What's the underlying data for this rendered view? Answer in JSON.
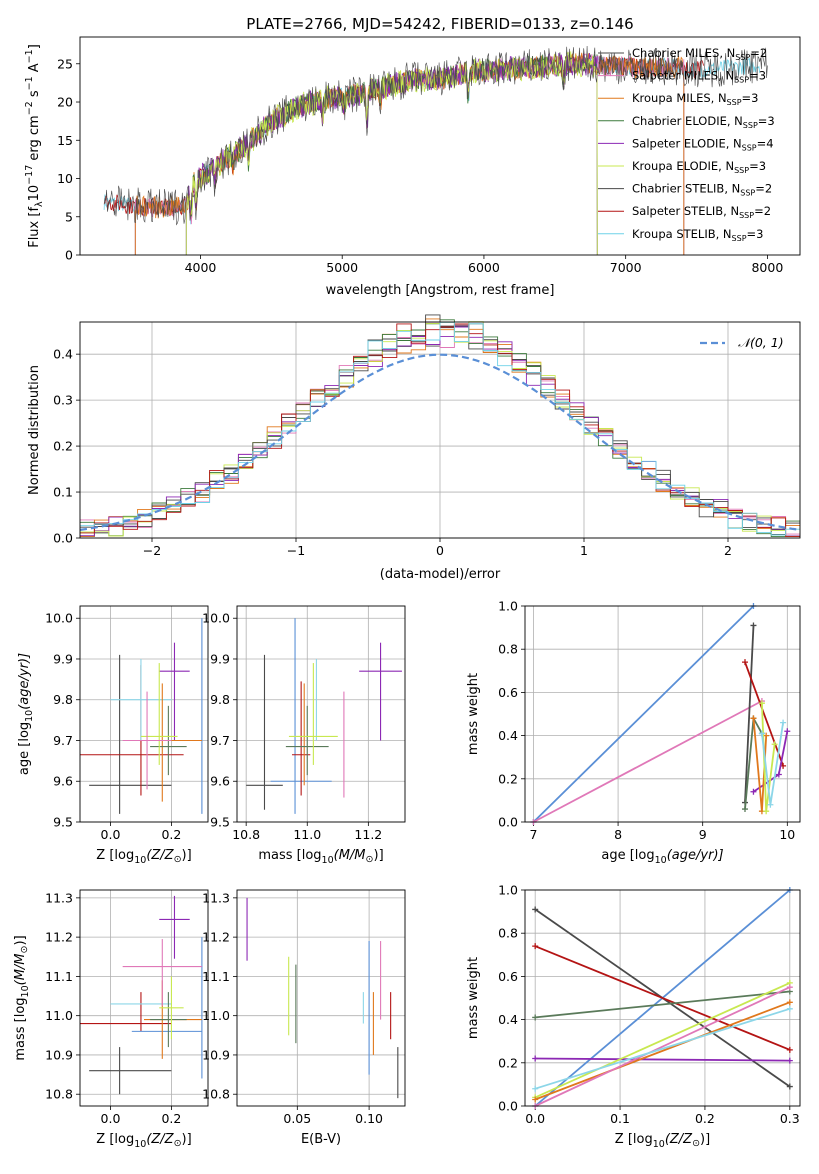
{
  "figure": {
    "title": "PLATE=2766, MJD=54242, FIBERID=0133, z=0.146"
  },
  "colors": {
    "Chabrier MILES": "#4a4a4a",
    "Salpeter MILES": "#e078b8",
    "Kroupa MILES": "#e0781c",
    "Chabrier ELODIE": "#3c7a3c",
    "Salpeter ELODIE": "#8c28b4",
    "Kroupa ELODIE": "#c8e850",
    "Chabrier STELIB": "#4a4a4a",
    "Salpeter STELIB": "#b41414",
    "Kroupa STELIB": "#6ed2e8",
    "normal": "#5a8fd6",
    "blue": "#5a8fd6",
    "pink": "#e078b8",
    "purple": "#8c28b4",
    "gray": "#4a4a4a",
    "green": "#5a7a5a",
    "lime": "#c8e850",
    "orange": "#e0781c",
    "red": "#b41414",
    "cyan": "#8cd6e8",
    "teal": "#2ca02c"
  },
  "chart_data": [
    {
      "id": "spectrum",
      "type": "line",
      "xlabel": "wavelength [Angstrom, rest frame]",
      "ylabel": "Flux [f",
      "ylabel_parts": [
        "Flux [f",
        "λ",
        "10",
        "−17",
        " erg cm",
        "−2",
        " s",
        "−1",
        " A",
        "−1",
        "]"
      ],
      "xlim": [
        3150,
        8230
      ],
      "ylim": [
        0,
        28.5
      ],
      "xticks": [
        4000,
        5000,
        6000,
        7000,
        8000
      ],
      "yticks": [
        0,
        5,
        10,
        15,
        20,
        25
      ],
      "grid": false,
      "legend_position": "upper-right",
      "legend": [
        {
          "name": "Chabrier MILES",
          "sub": "SSP",
          "n": "=2"
        },
        {
          "name": "Salpeter MILES",
          "sub": "SSP",
          "n": "=3"
        },
        {
          "name": "Kroupa MILES",
          "sub": "SSP",
          "n": "=3"
        },
        {
          "name": "Chabrier ELODIE",
          "sub": "SSP",
          "n": "=3"
        },
        {
          "name": "Salpeter ELODIE",
          "sub": "SSP",
          "n": "=4"
        },
        {
          "name": "Kroupa ELODIE",
          "sub": "SSP",
          "n": "=3"
        },
        {
          "name": "Chabrier STELIB",
          "sub": "SSP",
          "n": "=2"
        },
        {
          "name": "Salpeter STELIB",
          "sub": "SSP",
          "n": "=2"
        },
        {
          "name": "Kroupa STELIB",
          "sub": "SSP",
          "n": "=3"
        }
      ],
      "legend_prefix": "N",
      "continuum": {
        "x": [
          3320,
          3500,
          3700,
          3900,
          3950,
          4100,
          4300,
          4500,
          4700,
          4900,
          5100,
          5300,
          5500,
          5700,
          5900,
          6100,
          6300,
          6500,
          6700,
          6900,
          7100,
          7300,
          7400,
          7600,
          7800,
          8000
        ],
        "y": [
          7.0,
          6.5,
          6.2,
          6.5,
          9.5,
          11.5,
          14.0,
          17.5,
          19.5,
          20.5,
          21.0,
          22.0,
          23.0,
          23.0,
          24.0,
          24.2,
          24.5,
          24.8,
          25.0,
          24.8,
          24.5,
          24.6,
          24.4,
          24.3,
          24.6,
          25.0
        ]
      },
      "series_ranges": [
        {
          "name": "Chabrier MILES",
          "x": [
            3540,
            7410
          ]
        },
        {
          "name": "Salpeter MILES",
          "x": [
            3540,
            7410
          ]
        },
        {
          "name": "Kroupa MILES",
          "x": [
            3540,
            7410
          ]
        },
        {
          "name": "Chabrier ELODIE",
          "x": [
            3900,
            6800
          ]
        },
        {
          "name": "Salpeter ELODIE",
          "x": [
            3900,
            6800
          ]
        },
        {
          "name": "Kroupa ELODIE",
          "x": [
            3900,
            6800
          ]
        },
        {
          "name": "Chabrier STELIB",
          "x": [
            3320,
            8000
          ]
        },
        {
          "name": "Salpeter STELIB",
          "x": [
            3320,
            7550
          ]
        },
        {
          "name": "Kroupa STELIB",
          "x": [
            3320,
            7950
          ]
        }
      ]
    },
    {
      "id": "residuals",
      "type": "histogram",
      "xlabel": "(data-model)/error",
      "ylabel": "Normed distribution",
      "xlim": [
        -2.5,
        2.5
      ],
      "ylim": [
        0,
        0.47
      ],
      "xticks": [
        -2,
        -1,
        0,
        1,
        2
      ],
      "yticks": [
        0.0,
        0.1,
        0.2,
        0.3,
        0.4
      ],
      "grid": true,
      "legend_position": "upper-right",
      "legend": [
        {
          "name": "𝒩(0, 1)",
          "style": "dashed"
        }
      ],
      "bin_width": 0.1,
      "bin_start": -2.5
    },
    {
      "id": "z-age",
      "type": "errorbar",
      "xlabel": "Z [log",
      "xlabel_parts": [
        "Z [log",
        "10",
        "(Z/Z",
        "⊙",
        ")]"
      ],
      "ylabel_parts": [
        "age  [log",
        "10",
        "(age/yr)]"
      ],
      "xlim": [
        -0.1,
        0.32
      ],
      "ylim": [
        9.5,
        10.03
      ],
      "xticks": [
        0.0,
        0.2
      ],
      "yticks": [
        9.5,
        9.6,
        9.7,
        9.8,
        9.9,
        10.0
      ],
      "grid": true,
      "points": [
        {
          "color": "gray",
          "x": 0.03,
          "xerr": [
            0.1,
            0.17
          ],
          "y": 9.59,
          "yerr": [
            0.07,
            0.32
          ]
        },
        {
          "color": "red",
          "x": 0.1,
          "xerr": [
            0.2,
            0.14
          ],
          "y": 9.665,
          "yerr": [
            0.1,
            0.22
          ]
        },
        {
          "color": "blue",
          "x": 0.3,
          "xerr": [
            0.0,
            0.0
          ],
          "y": 9.6,
          "yerr": [
            0.08,
            0.4
          ]
        },
        {
          "color": "cyan",
          "x": 0.1,
          "xerr": [
            0.1,
            0.1
          ],
          "y": 9.8,
          "yerr": [
            0.1,
            0.1
          ]
        },
        {
          "color": "purple",
          "x": 0.21,
          "xerr": [
            0.05,
            0.05
          ],
          "y": 9.87,
          "yerr": [
            0.17,
            0.07
          ]
        },
        {
          "color": "orange",
          "x": 0.17,
          "xerr": [
            0.06,
            0.13
          ],
          "y": 9.7,
          "yerr": [
            0.15,
            0.14
          ]
        },
        {
          "color": "green",
          "x": 0.19,
          "xerr": [
            0.06,
            0.06
          ],
          "y": 9.685,
          "yerr": [
            0.07,
            0.1
          ]
        },
        {
          "color": "lime",
          "x": 0.16,
          "xerr": [
            0.06,
            0.06
          ],
          "y": 9.71,
          "yerr": [
            0.07,
            0.18
          ]
        },
        {
          "color": "pink",
          "x": 0.12,
          "xerr": [
            0.08,
            0.08
          ],
          "y": 9.7,
          "yerr": [
            0.12,
            0.12
          ]
        }
      ]
    },
    {
      "id": "mass-age",
      "type": "errorbar",
      "xlabel_parts": [
        "mass [log",
        "10",
        "(M/M",
        "⊙",
        ")]"
      ],
      "xlim": [
        10.77,
        11.32
      ],
      "ylim": [
        9.5,
        10.03
      ],
      "xticks": [
        10.8,
        11.0,
        11.2
      ],
      "yticks": [
        9.5,
        9.6,
        9.7,
        9.8,
        9.9,
        10.0
      ],
      "grid": true,
      "points": [
        {
          "color": "gray",
          "x": 10.86,
          "xerr": [
            0.06,
            0.06
          ],
          "y": 9.59,
          "yerr": [
            0.06,
            0.32
          ]
        },
        {
          "color": "blue",
          "x": 10.96,
          "xerr": [
            0.08,
            0.12
          ],
          "y": 9.6,
          "yerr": [
            0.08,
            0.4
          ]
        },
        {
          "color": "red",
          "x": 10.98,
          "xerr": [
            0.03,
            0.03
          ],
          "y": 9.665,
          "yerr": [
            0.1,
            0.18
          ]
        },
        {
          "color": "orange",
          "x": 10.99,
          "xerr": [
            0.0,
            0.0
          ],
          "y": 9.69,
          "yerr": [
            0.1,
            0.15
          ]
        },
        {
          "color": "green",
          "x": 11.0,
          "xerr": [
            0.07,
            0.07
          ],
          "y": 9.685,
          "yerr": [
            0.07,
            0.1
          ]
        },
        {
          "color": "cyan",
          "x": 11.03,
          "xerr": [
            0.0,
            0.0
          ],
          "y": 9.8,
          "yerr": [
            0.1,
            0.1
          ]
        },
        {
          "color": "lime",
          "x": 11.02,
          "xerr": [
            0.08,
            0.08
          ],
          "y": 9.71,
          "yerr": [
            0.07,
            0.18
          ]
        },
        {
          "color": "pink",
          "x": 11.12,
          "xerr": [
            0.0,
            0.0
          ],
          "y": 9.7,
          "yerr": [
            0.14,
            0.12
          ]
        },
        {
          "color": "purple",
          "x": 11.24,
          "xerr": [
            0.07,
            0.07
          ],
          "y": 9.87,
          "yerr": [
            0.17,
            0.07
          ]
        }
      ]
    },
    {
      "id": "weight-age",
      "type": "line",
      "xlabel_parts": [
        "age  [log",
        "10",
        "(age/yr)]"
      ],
      "ylabel": "mass weight",
      "xlim": [
        6.9,
        10.15
      ],
      "ylim": [
        0,
        1
      ],
      "xticks": [
        7,
        8,
        9,
        10
      ],
      "yticks": [
        0.0,
        0.2,
        0.4,
        0.6,
        0.8,
        1.0
      ],
      "grid": true,
      "series": [
        {
          "color": "blue",
          "x": [
            7.0,
            9.6
          ],
          "y": [
            0.0,
            1.0
          ]
        },
        {
          "color": "pink",
          "x": [
            7.0,
            9.7
          ],
          "y": [
            0.0,
            0.56
          ]
        },
        {
          "color": "gray",
          "x": [
            9.5,
            9.6
          ],
          "y": [
            0.09,
            0.91
          ]
        },
        {
          "color": "red",
          "x": [
            9.5,
            9.95
          ],
          "y": [
            0.74,
            0.26
          ]
        },
        {
          "color": "green",
          "x": [
            9.5,
            9.6,
            9.7
          ],
          "y": [
            0.06,
            0.48,
            0.41
          ]
        },
        {
          "color": "purple",
          "x": [
            9.6,
            9.9,
            10.0
          ],
          "y": [
            0.14,
            0.22,
            0.42
          ]
        },
        {
          "color": "orange",
          "x": [
            9.6,
            9.7,
            9.75
          ],
          "y": [
            0.48,
            0.05,
            0.4
          ]
        },
        {
          "color": "lime",
          "x": [
            9.7,
            9.75,
            9.85
          ],
          "y": [
            0.55,
            0.05,
            0.36
          ]
        },
        {
          "color": "cyan",
          "x": [
            9.7,
            9.8,
            9.95
          ],
          "y": [
            0.41,
            0.08,
            0.46
          ]
        }
      ]
    },
    {
      "id": "z-mass",
      "type": "errorbar",
      "xlabel_parts": [
        "Z [log",
        "10",
        "(Z/Z",
        "⊙",
        ")]"
      ],
      "ylabel_parts": [
        "mass [log",
        "10",
        "(M/M",
        "⊙",
        ")]"
      ],
      "xlim": [
        -0.1,
        0.32
      ],
      "ylim": [
        10.77,
        11.32
      ],
      "xticks": [
        0.0,
        0.2
      ],
      "yticks": [
        10.8,
        10.9,
        11.0,
        11.1,
        11.2,
        11.3
      ],
      "grid": true,
      "points": [
        {
          "color": "gray",
          "x": 0.03,
          "xerr": [
            0.1,
            0.17
          ],
          "y": 10.86,
          "yerr": [
            0.06,
            0.06
          ]
        },
        {
          "color": "red",
          "x": 0.1,
          "xerr": [
            0.2,
            0.1
          ],
          "y": 10.98,
          "yerr": [
            0.02,
            0.08
          ]
        },
        {
          "color": "blue",
          "x": 0.3,
          "xerr": [
            0.23,
            0.0
          ],
          "y": 10.96,
          "yerr": [
            0.12,
            0.24
          ]
        },
        {
          "color": "cyan",
          "x": 0.1,
          "xerr": [
            0.1,
            0.1
          ],
          "y": 11.03,
          "yerr": [
            0.0,
            0.0
          ]
        },
        {
          "color": "purple",
          "x": 0.21,
          "xerr": [
            0.05,
            0.05
          ],
          "y": 11.245,
          "yerr": [
            0.1,
            0.06
          ]
        },
        {
          "color": "orange",
          "x": 0.17,
          "xerr": [
            0.06,
            0.13
          ],
          "y": 10.99,
          "yerr": [
            0.1,
            0.1
          ]
        },
        {
          "color": "green",
          "x": 0.19,
          "xerr": [
            0.06,
            0.06
          ],
          "y": 10.99,
          "yerr": [
            0.07,
            0.07
          ]
        },
        {
          "color": "lime",
          "x": 0.2,
          "xerr": [
            0.04,
            0.04
          ],
          "y": 11.02,
          "yerr": [
            0.08,
            0.08
          ]
        },
        {
          "color": "pink",
          "x": 0.17,
          "xerr": [
            0.13,
            0.13
          ],
          "y": 11.125,
          "yerr": [
            0.1,
            0.07
          ]
        }
      ]
    },
    {
      "id": "ebv-mass",
      "type": "errorbar",
      "xlabel": "E(B-V)",
      "xlim": [
        0.008,
        0.125
      ],
      "ylim": [
        10.77,
        11.32
      ],
      "xticks": [
        0.05,
        0.1
      ],
      "yticks": [
        10.8,
        10.9,
        11.0,
        11.1,
        11.2,
        11.3
      ],
      "grid": true,
      "points": [
        {
          "color": "purple",
          "x": 0.015,
          "y": 11.22,
          "yerr": [
            0.08,
            0.08
          ]
        },
        {
          "color": "lime",
          "x": 0.044,
          "y": 11.05,
          "yerr": [
            0.1,
            0.1
          ]
        },
        {
          "color": "green",
          "x": 0.049,
          "y": 11.03,
          "yerr": [
            0.1,
            0.1
          ]
        },
        {
          "color": "cyan",
          "x": 0.096,
          "y": 11.02,
          "yerr": [
            0.04,
            0.04
          ]
        },
        {
          "color": "blue",
          "x": 0.1,
          "y": 11.02,
          "yerr": [
            0.17,
            0.17
          ]
        },
        {
          "color": "orange",
          "x": 0.103,
          "y": 10.98,
          "yerr": [
            0.08,
            0.08
          ]
        },
        {
          "color": "pink",
          "x": 0.108,
          "y": 11.09,
          "yerr": [
            0.1,
            0.1
          ]
        },
        {
          "color": "red",
          "x": 0.115,
          "y": 11.0,
          "yerr": [
            0.06,
            0.06
          ]
        },
        {
          "color": "gray",
          "x": 0.12,
          "y": 10.86,
          "yerr": [
            0.07,
            0.06
          ]
        }
      ]
    },
    {
      "id": "weight-z",
      "type": "line",
      "xlabel_parts": [
        "Z [log",
        "10",
        "(Z/Z",
        "⊙",
        ")]"
      ],
      "ylabel": "mass weight",
      "xlim": [
        -0.012,
        0.312
      ],
      "ylim": [
        0,
        1
      ],
      "xticks": [
        0.0,
        0.1,
        0.2,
        0.3
      ],
      "yticks": [
        0.0,
        0.2,
        0.4,
        0.6,
        0.8,
        1.0
      ],
      "grid": true,
      "series": [
        {
          "color": "blue",
          "x": [
            0.0,
            0.3
          ],
          "y": [
            0.0,
            1.0
          ]
        },
        {
          "color": "gray",
          "x": [
            0.0,
            0.3
          ],
          "y": [
            0.91,
            0.09
          ]
        },
        {
          "color": "red",
          "x": [
            0.0,
            0.3
          ],
          "y": [
            0.74,
            0.26
          ]
        },
        {
          "color": "green",
          "x": [
            0.0,
            0.3
          ],
          "y": [
            0.41,
            0.53
          ]
        },
        {
          "color": "purple",
          "x": [
            0.0,
            0.3
          ],
          "y": [
            0.22,
            0.21
          ]
        },
        {
          "color": "lime",
          "x": [
            0.0,
            0.3
          ],
          "y": [
            0.04,
            0.57
          ]
        },
        {
          "color": "orange",
          "x": [
            0.0,
            0.3
          ],
          "y": [
            0.03,
            0.48
          ]
        },
        {
          "color": "pink",
          "x": [
            0.0,
            0.3
          ],
          "y": [
            0.0,
            0.55
          ]
        },
        {
          "color": "cyan",
          "x": [
            0.0,
            0.3
          ],
          "y": [
            0.08,
            0.45
          ]
        }
      ]
    }
  ]
}
